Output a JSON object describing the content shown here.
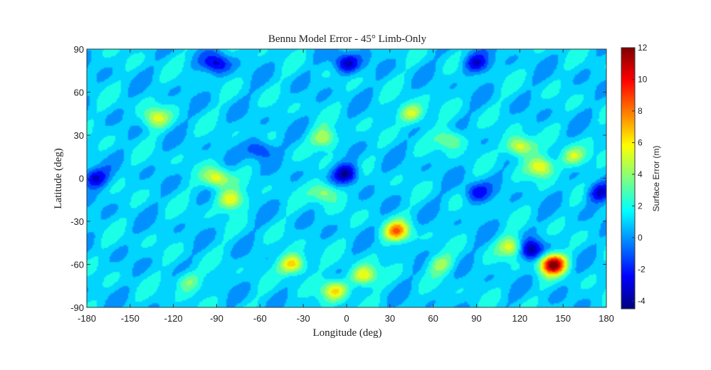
{
  "chart_data": {
    "type": "heatmap",
    "title": "Bennu Model Error - 45° Limb-Only",
    "xlabel": "Longitude (deg)",
    "ylabel": "Latitude (deg)",
    "xlim": [
      -180,
      180
    ],
    "ylim": [
      -90,
      90
    ],
    "x_ticks": [
      -180,
      -150,
      -120,
      -90,
      -60,
      -30,
      0,
      30,
      60,
      90,
      120,
      150,
      180
    ],
    "y_ticks": [
      -90,
      -60,
      -30,
      0,
      30,
      60,
      90
    ],
    "x_tick_labels": [
      "-180",
      "-150",
      "-120",
      "-90",
      "-60",
      "-30",
      "0",
      "30",
      "60",
      "90",
      "120",
      "150",
      "180"
    ],
    "y_tick_labels": [
      "-90",
      "-60",
      "-30",
      "0",
      "30",
      "60",
      "90"
    ],
    "colorbar": {
      "label": "Surface Error (m)",
      "range": [
        -4.5,
        12
      ],
      "ticks": [
        -4,
        -2,
        0,
        2,
        4,
        6,
        8,
        10,
        12
      ],
      "tick_labels": [
        "-4",
        "-2",
        "0",
        "2",
        "4",
        "6",
        "8",
        "10",
        "12"
      ],
      "colormap": "jet"
    },
    "baseline_error": 1.0,
    "features": [
      {
        "lon": 143,
        "lat": -60,
        "value": 12
      },
      {
        "lon": 127,
        "lat": -50,
        "value": -4.5
      },
      {
        "lon": 115,
        "lat": -48,
        "value": 6
      },
      {
        "lon": -37,
        "lat": -60,
        "value": 7
      },
      {
        "lon": -8,
        "lat": -78,
        "value": 6
      },
      {
        "lon": 12,
        "lat": -68,
        "value": 6
      },
      {
        "lon": 35,
        "lat": -37,
        "value": 7.5
      },
      {
        "lon": -15,
        "lat": 28,
        "value": 5
      },
      {
        "lon": -15,
        "lat": -10,
        "value": 5
      },
      {
        "lon": -90,
        "lat": 0,
        "value": 6
      },
      {
        "lon": -80,
        "lat": -15,
        "value": 6
      },
      {
        "lon": 45,
        "lat": 45,
        "value": 5.5
      },
      {
        "lon": 120,
        "lat": 22,
        "value": 6.5
      },
      {
        "lon": 135,
        "lat": 8,
        "value": 6
      },
      {
        "lon": 157,
        "lat": 15,
        "value": 5
      },
      {
        "lon": -132,
        "lat": 42,
        "value": 5
      },
      {
        "lon": 72,
        "lat": 27,
        "value": 4.5
      },
      {
        "lon": 65,
        "lat": -60,
        "value": 4
      },
      {
        "lon": -110,
        "lat": -72,
        "value": 4
      },
      {
        "lon": 0,
        "lat": 3,
        "value": -4
      },
      {
        "lon": 0,
        "lat": 80,
        "value": -3.5
      },
      {
        "lon": -90,
        "lat": 80,
        "value": -3
      },
      {
        "lon": 90,
        "lat": 80,
        "value": -3
      },
      {
        "lon": -175,
        "lat": 0,
        "value": -3
      },
      {
        "lon": 175,
        "lat": -10,
        "value": -3
      },
      {
        "lon": -60,
        "lat": 20,
        "value": -2.5
      },
      {
        "lon": 90,
        "lat": -10,
        "value": -2.5
      }
    ]
  }
}
